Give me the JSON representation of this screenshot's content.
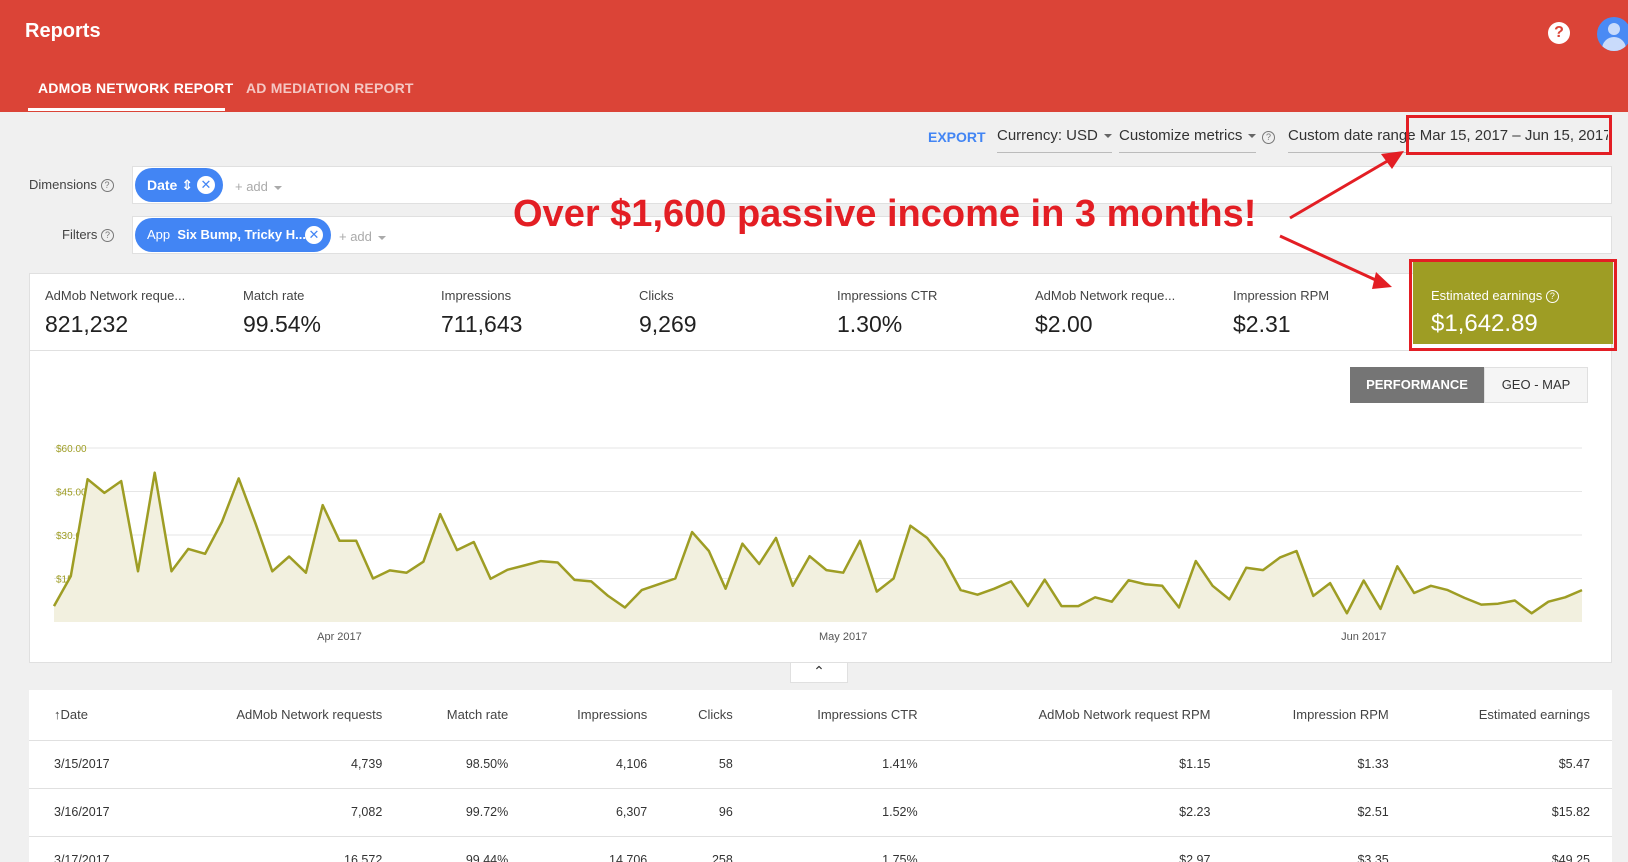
{
  "header": {
    "title": "Reports",
    "tabs": [
      {
        "label": "ADMOB NETWORK REPORT",
        "active": true
      },
      {
        "label": "AD MEDIATION REPORT",
        "active": false
      }
    ]
  },
  "toolbar": {
    "export": "EXPORT",
    "currency": "Currency: USD",
    "customize": "Customize metrics",
    "date_range_label": "Custom date range",
    "date_range_value": "Mar 15, 2017 – Jun 15, 2017"
  },
  "dimensions": {
    "label": "Dimensions",
    "chip": "Date ⇕",
    "add": "+ add"
  },
  "filters": {
    "label": "Filters",
    "chip_prefix": "App",
    "chip_value": "Six Bump, Tricky H...",
    "add": "+ add"
  },
  "metrics": [
    {
      "label": "AdMob Network reque...",
      "value": "821,232"
    },
    {
      "label": "Match rate",
      "value": "99.54%"
    },
    {
      "label": "Impressions",
      "value": "711,643"
    },
    {
      "label": "Clicks",
      "value": "9,269"
    },
    {
      "label": "Impressions CTR",
      "value": "1.30%"
    },
    {
      "label": "AdMob Network reque...",
      "value": "$2.00"
    },
    {
      "label": "Impression RPM",
      "value": "$2.31"
    }
  ],
  "earnings": {
    "label": "Estimated earnings",
    "value": "$1,642.89"
  },
  "annotation": "Over $1,600 passive income in 3 months!",
  "view_buttons": {
    "performance": "PERFORMANCE",
    "geo": "GEO - MAP"
  },
  "colors": {
    "header": "#db4437",
    "chart_line": "#9e9d24",
    "annotation": "#e31e24",
    "accent_blue": "#4285f4"
  },
  "chart_data": {
    "type": "area",
    "ylim": [
      0,
      60
    ],
    "y_ticks": [
      "$60.00",
      "$45.00",
      "$30.00",
      "$15.00"
    ],
    "x_tick_labels": [
      {
        "label": "Apr 2017",
        "day_index": 17
      },
      {
        "label": "May 2017",
        "day_index": 47
      },
      {
        "label": "Jun 2017",
        "day_index": 78
      }
    ],
    "series": [
      {
        "values": [
          5.47,
          15.82,
          49.25,
          44.5,
          48.6,
          17.5,
          51.5,
          17.5,
          25.2,
          23.5,
          34.5,
          49.5,
          34.0,
          17.5,
          22.6,
          17.0,
          40.3,
          28.0,
          28.0,
          15.0,
          17.8,
          17.0,
          20.8,
          37.2,
          24.8,
          27.6,
          14.9,
          18.0,
          19.5,
          21.0,
          20.5,
          14.5,
          14.0,
          9.0,
          5.0,
          11.0,
          13.0,
          15.0,
          31.0,
          24.5,
          11.5,
          27.0,
          20.0,
          29.0,
          12.5,
          22.7,
          17.9,
          17.0,
          28.0,
          10.5,
          15.0,
          33.2,
          29.0,
          21.7,
          11.0,
          9.4,
          11.5,
          14.0,
          5.5,
          14.6,
          5.5,
          5.5,
          8.5,
          7.0,
          14.4,
          13.0,
          12.5,
          5.0,
          21.0,
          12.5,
          7.8,
          18.7,
          17.9,
          22.2,
          24.5,
          9.0,
          13.4,
          3.0,
          14.3,
          4.5,
          19.2,
          10.0,
          12.5,
          11.0,
          8.3,
          6.0,
          6.3,
          7.4,
          3.0,
          7.0,
          8.5,
          11.0
        ]
      }
    ]
  },
  "table": {
    "columns": [
      "↑Date",
      "AdMob Network requests",
      "Match rate",
      "Impressions",
      "Clicks",
      "Impressions CTR",
      "AdMob Network request RPM",
      "Impression RPM",
      "Estimated earnings"
    ],
    "rows": [
      [
        "3/15/2017",
        "4,739",
        "98.50%",
        "4,106",
        "58",
        "1.41%",
        "$1.15",
        "$1.33",
        "$5.47"
      ],
      [
        "3/16/2017",
        "7,082",
        "99.72%",
        "6,307",
        "96",
        "1.52%",
        "$2.23",
        "$2.51",
        "$15.82"
      ],
      [
        "3/17/2017",
        "16,572",
        "99.44%",
        "14,706",
        "258",
        "1.75%",
        "$2.97",
        "$3.35",
        "$49.25"
      ]
    ]
  }
}
